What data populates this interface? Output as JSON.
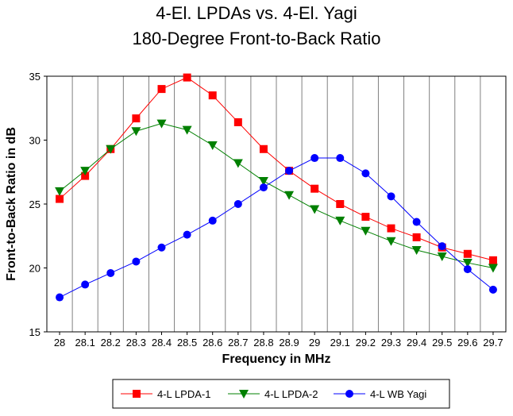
{
  "chart_data": {
    "type": "line",
    "title": "4-El. LPDAs vs. 4-El. Yagi",
    "subtitle": "180-Degree Front-to-Back Ratio",
    "xlabel": "Frequency in MHz",
    "ylabel": "Front-to-Back Ratio in dB",
    "categories": [
      "28",
      "28.1",
      "28.2",
      "28.3",
      "28.4",
      "28.5",
      "28.6",
      "28.7",
      "28.8",
      "28.9",
      "29",
      "29.1",
      "29.2",
      "29.3",
      "29.4",
      "29.5",
      "29.6",
      "29.7"
    ],
    "ylim": [
      15,
      35
    ],
    "yticks": [
      15,
      20,
      25,
      30,
      35
    ],
    "grid": "vertical",
    "legend_position": "bottom",
    "series": [
      {
        "name": "4-L LPDA-1",
        "color": "#ff0000",
        "marker": "square",
        "values": [
          25.4,
          27.2,
          29.3,
          31.7,
          34.0,
          34.9,
          33.5,
          31.4,
          29.3,
          27.6,
          26.2,
          25.0,
          24.0,
          23.1,
          22.4,
          21.6,
          21.1,
          20.6
        ]
      },
      {
        "name": "4-L LPDA-2",
        "color": "#008000",
        "marker": "triangle-down",
        "values": [
          26.0,
          27.6,
          29.3,
          30.7,
          31.3,
          30.8,
          29.6,
          28.2,
          26.8,
          25.7,
          24.6,
          23.7,
          22.9,
          22.1,
          21.4,
          20.9,
          20.4,
          20.0
        ]
      },
      {
        "name": "4-L WB Yagi",
        "color": "#0000ff",
        "marker": "circle",
        "values": [
          17.7,
          18.7,
          19.6,
          20.5,
          21.6,
          22.6,
          23.7,
          25.0,
          26.3,
          27.6,
          28.6,
          28.6,
          27.4,
          25.6,
          23.6,
          21.7,
          19.9,
          18.3
        ]
      }
    ]
  }
}
